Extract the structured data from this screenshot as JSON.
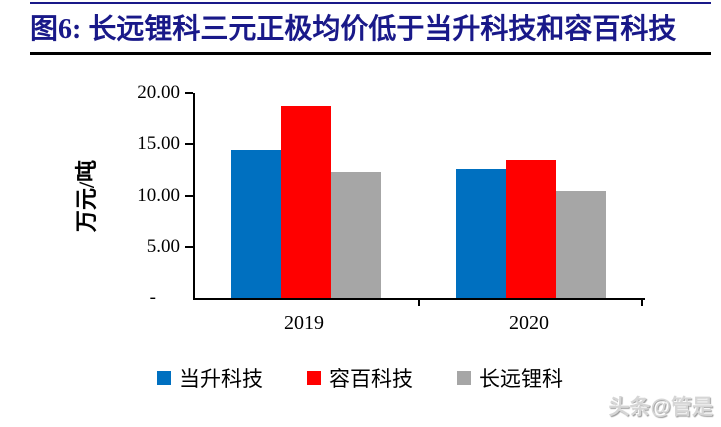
{
  "title": "图6:  长远锂科三元正极均价低于当升科技和容百科技",
  "watermark": "头条@管是",
  "colors": {
    "title_navy": "#191989",
    "rule_black": "#000000",
    "bar_blue": "#0070C0",
    "bar_red": "#FF0000",
    "bar_gray": "#A6A6A6",
    "watermark_gray": "#D6D6D6"
  },
  "chart_data": {
    "type": "bar",
    "categories": [
      "2019",
      "2020"
    ],
    "series": [
      {
        "name": "当升科技",
        "color": "#0070C0",
        "values": [
          14.4,
          12.6
        ]
      },
      {
        "name": "容百科技",
        "color": "#FF0000",
        "values": [
          18.7,
          13.5
        ]
      },
      {
        "name": "长远锂科",
        "color": "#A6A6A6",
        "values": [
          12.3,
          10.4
        ]
      }
    ],
    "title": "",
    "xlabel": "",
    "ylabel": "万元/吨",
    "ylim": [
      0,
      20
    ],
    "ytick_labels": [
      "20.00",
      "15.00",
      "10.00",
      "5.00",
      "-"
    ],
    "grid": false,
    "legend_position": "bottom"
  }
}
